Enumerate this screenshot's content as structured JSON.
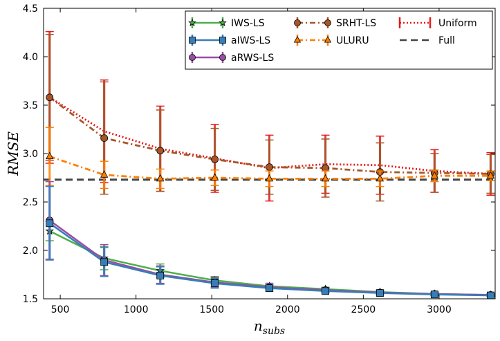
{
  "chart_data": {
    "type": "line",
    "title": "",
    "xlabel": "n_subs",
    "ylabel": "RMSE",
    "xlim": [
      390,
      3370
    ],
    "ylim": [
      1.5,
      4.5
    ],
    "xticks": [
      500,
      1000,
      1500,
      2000,
      2500,
      3000
    ],
    "yticks": [
      1.5,
      2.0,
      2.5,
      3.0,
      3.5,
      4.0,
      4.5
    ],
    "xtick_labels": [
      "500",
      "1000",
      "1500",
      "2000",
      "2500",
      "3000"
    ],
    "ytick_labels": [
      "1.5",
      "2.0",
      "2.5",
      "3.0",
      "3.5",
      "4.0",
      "4.5"
    ],
    "legend_position": "top-right",
    "x": [
      430,
      790,
      1160,
      1520,
      1880,
      2250,
      2610,
      2970,
      3340
    ],
    "series": [
      {
        "name": "IWS-LS",
        "color": "#4daf4a",
        "marker": "star",
        "line": "solid",
        "values": [
          2.2,
          1.92,
          1.79,
          1.69,
          1.63,
          1.6,
          1.57,
          1.55,
          1.54
        ],
        "errors": [
          0.1,
          0.12,
          0.07,
          0.04,
          0.03,
          0.02,
          0.02,
          0.02,
          0.01
        ]
      },
      {
        "name": "aIWS-LS",
        "color": "#377eb8",
        "marker": "square",
        "line": "solid",
        "values": [
          2.28,
          1.88,
          1.74,
          1.66,
          1.61,
          1.58,
          1.56,
          1.545,
          1.535
        ],
        "errors": [
          0.38,
          0.15,
          0.09,
          0.05,
          0.03,
          0.02,
          0.02,
          0.01,
          0.01
        ]
      },
      {
        "name": "aRWS-LS",
        "color": "#984ea3",
        "marker": "circle",
        "line": "solid",
        "values": [
          2.31,
          1.9,
          1.75,
          1.67,
          1.62,
          1.59,
          1.565,
          1.55,
          1.54
        ],
        "errors": [
          0.4,
          0.16,
          0.09,
          0.05,
          0.04,
          0.02,
          0.02,
          0.01,
          0.01
        ]
      },
      {
        "name": "SRHT-LS",
        "color": "#a65628",
        "marker": "circle",
        "line": "dashdot",
        "values": [
          3.58,
          3.16,
          3.03,
          2.94,
          2.86,
          2.85,
          2.81,
          2.8,
          2.79
        ],
        "errors": [
          0.65,
          0.58,
          0.42,
          0.32,
          0.28,
          0.3,
          0.3,
          0.2,
          0.2
        ]
      },
      {
        "name": "ULURU",
        "color": "#ff7f00",
        "marker": "triangle",
        "line": "dashdot",
        "values": [
          2.97,
          2.78,
          2.74,
          2.75,
          2.74,
          2.74,
          2.74,
          2.77,
          2.77
        ],
        "errors": [
          0.3,
          0.14,
          0.1,
          0.08,
          0.08,
          0.08,
          0.08,
          0.06,
          0.05
        ]
      },
      {
        "name": "Uniform",
        "color": "#e41a1c",
        "marker": "none",
        "line": "dotted",
        "values": [
          3.58,
          3.23,
          3.05,
          2.95,
          2.85,
          2.89,
          2.88,
          2.82,
          2.79
        ],
        "errors": [
          0.68,
          0.53,
          0.44,
          0.35,
          0.34,
          0.3,
          0.3,
          0.22,
          0.22
        ]
      },
      {
        "name": "Full",
        "color": "#444444",
        "marker": "none",
        "line": "dashed",
        "values": [
          2.73,
          2.73,
          2.73,
          2.73,
          2.73,
          2.73,
          2.73,
          2.73,
          2.73
        ],
        "errors": null
      }
    ],
    "legend_order": [
      "IWS-LS",
      "aIWS-LS",
      "aRWS-LS",
      "SRHT-LS",
      "ULURU",
      "Uniform",
      "Full"
    ]
  }
}
